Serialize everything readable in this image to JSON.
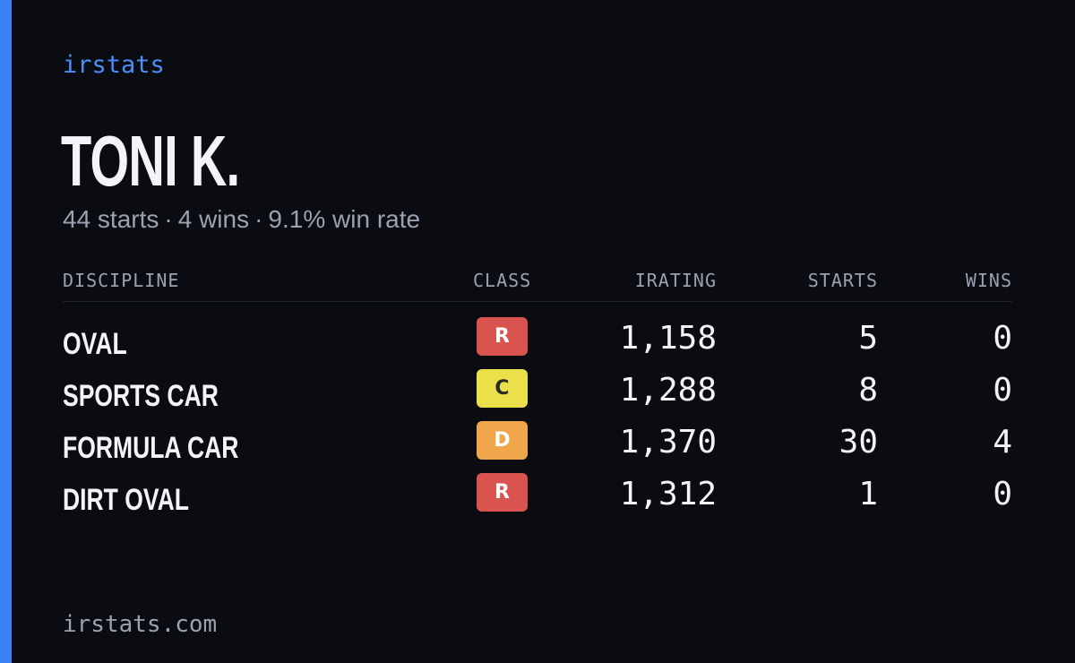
{
  "brand": "irstats",
  "driver": {
    "name": "TONI K.",
    "starts_text": "44 starts",
    "wins_text": "4 wins",
    "winrate_text": "9.1% win rate",
    "separator": "·"
  },
  "table": {
    "headers": {
      "discipline": "DISCIPLINE",
      "class": "CLASS",
      "irating": "IRATING",
      "starts": "STARTS",
      "wins": "WINS"
    },
    "rows": [
      {
        "discipline": "OVAL",
        "class": "R",
        "class_color": "#d9534f",
        "class_text_color": "#ffffff",
        "irating": "1,158",
        "starts": "5",
        "wins": "0"
      },
      {
        "discipline": "SPORTS CAR",
        "class": "C",
        "class_color": "#ebe04a",
        "class_text_color": "#2a2a2a",
        "irating": "1,288",
        "starts": "8",
        "wins": "0"
      },
      {
        "discipline": "FORMULA CAR",
        "class": "D",
        "class_color": "#f0a64a",
        "class_text_color": "#ffffff",
        "irating": "1,370",
        "starts": "30",
        "wins": "4"
      },
      {
        "discipline": "DIRT OVAL",
        "class": "R",
        "class_color": "#d9534f",
        "class_text_color": "#ffffff",
        "irating": "1,312",
        "starts": "1",
        "wins": "0"
      }
    ]
  },
  "footer": "irstats.com",
  "colors": {
    "background": "#0a0c12",
    "accent": "#3b82f6"
  }
}
